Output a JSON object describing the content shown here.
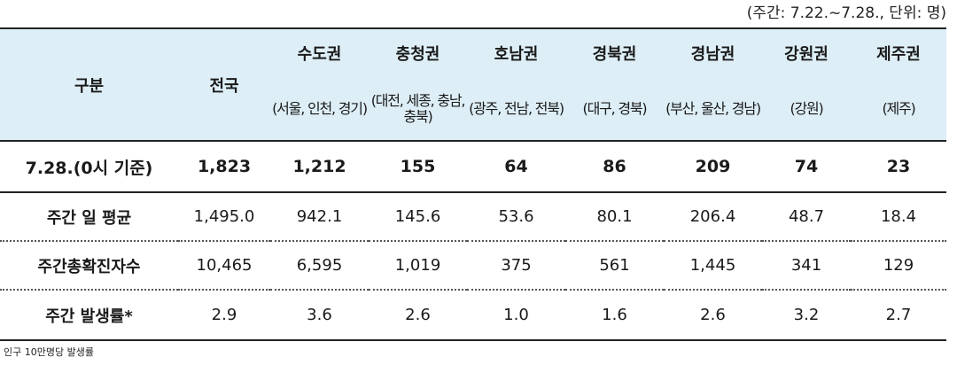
{
  "unit_note": "(주간: 7.22.~7.28., 단위: 명)",
  "table": {
    "header": {
      "category": "구분",
      "national": "전국",
      "regions": [
        {
          "name": "수도권",
          "sub": "(서울, 인천, 경기)"
        },
        {
          "name": "충청권",
          "sub": "(대전, 세종, 충남, 충북)"
        },
        {
          "name": "호남권",
          "sub": "(광주, 전남, 전북)"
        },
        {
          "name": "경북권",
          "sub": "(대구, 경북)"
        },
        {
          "name": "경남권",
          "sub": "(부산, 울산, 경남)"
        },
        {
          "name": "강원권",
          "sub": "(강원)"
        },
        {
          "name": "제주권",
          "sub": "(제주)"
        }
      ]
    },
    "rows": [
      {
        "label": "7.28.(0시 기준)",
        "values": [
          "1,823",
          "1,212",
          "155",
          "64",
          "86",
          "209",
          "74",
          "23"
        ]
      },
      {
        "label": "주간 일 평균",
        "values": [
          "1,495.0",
          "942.1",
          "145.6",
          "53.6",
          "80.1",
          "206.4",
          "48.7",
          "18.4"
        ]
      },
      {
        "label": "주간총확진자수",
        "values": [
          "10,465",
          "6,595",
          "1,019",
          "375",
          "561",
          "1,445",
          "341",
          "129"
        ]
      },
      {
        "label": "주간 발생률*",
        "values": [
          "2.9",
          "3.6",
          "2.6",
          "1.0",
          "1.6",
          "2.6",
          "3.2",
          "2.7"
        ]
      }
    ]
  },
  "footnote": "인구 10만명당 발생률"
}
